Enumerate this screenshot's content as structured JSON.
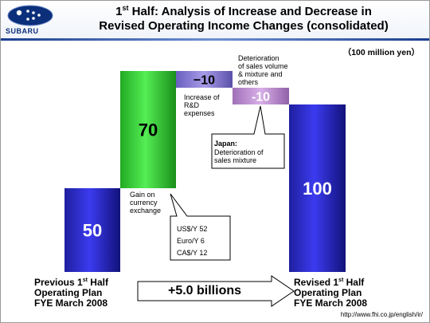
{
  "logo": {
    "text": "SUBARU"
  },
  "title": {
    "line1_prefix": "1",
    "line1_sup": "st",
    "line1_rest": " Half:  Analysis of Increase and Decrease in",
    "line2": "Revised Operating Income Changes (consolidated)"
  },
  "unit": "（100 million yen）",
  "footer_url": "http://www.fhi.co.jp/english/ir/",
  "chart_data": {
    "type": "bar",
    "subtype": "waterfall",
    "unit": "100 million yen",
    "categories": [
      "Previous 1st Half Operating Plan FYE March 2008",
      "Gain on currency exchange",
      "Increase of R&D expenses",
      "Deterioration of sales volume & mixture and others",
      "Revised 1st Half Operating Plan FYE March 2008"
    ],
    "values": [
      50,
      70,
      -10,
      -10,
      100
    ],
    "value_labels": [
      "50",
      "70",
      "−10",
      "-10",
      "100"
    ],
    "bar_colors": [
      "#1a1aa8",
      "#33cc33",
      "#7a6fd0",
      "#b388c8",
      "#1a1aa8"
    ],
    "ylim": [
      0,
      125
    ]
  },
  "labels": {
    "start_1": "Previous 1",
    "start_1_sup": "st",
    "start_1_rest": " Half",
    "start_2": "Operating Plan",
    "start_3": "FYE March 2008",
    "end_1": "Revised 1",
    "end_1_sup": "st",
    "end_1_rest": " Half",
    "end_2": "Operating Plan",
    "end_3": "FYE March 2008",
    "gain_1": "Gain on",
    "gain_2": "currency",
    "gain_3": "exchange",
    "rd_1": "Increase of",
    "rd_2": "R&D",
    "rd_3": "expenses",
    "sales_1": "Deterioration",
    "sales_2": "of sales volume",
    "sales_3": "& mixture and",
    "sales_4": "others"
  },
  "callouts": {
    "yen_rates": [
      "US$/Y 52",
      "Euro/Y 6",
      "CA$/Y 12"
    ],
    "japan_title": "Japan:",
    "japan_lines": [
      "Deterioration of",
      "sales mixture"
    ]
  },
  "total_change": "+5.0 billions"
}
